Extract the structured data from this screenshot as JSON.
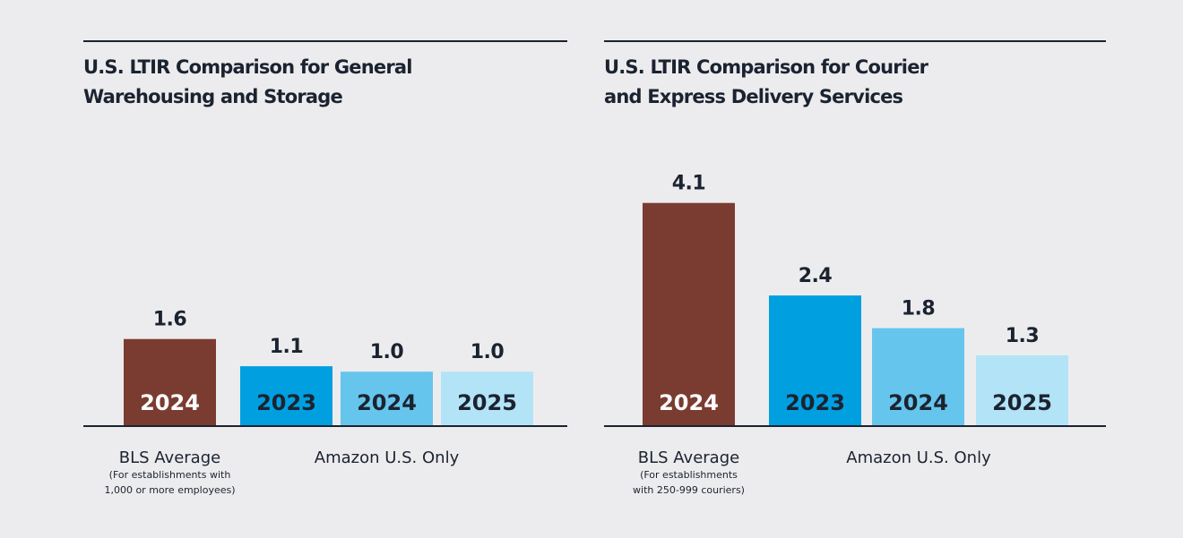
{
  "chart_data": [
    {
      "type": "bar",
      "title": [
        "U.S. LTIR Comparison for General",
        "Warehousing and Storage"
      ],
      "categories": [
        "2024",
        "2023",
        "2024",
        "2025"
      ],
      "values": [
        1.6,
        1.1,
        1,
        1
      ],
      "value_labels": [
        "1.6",
        "1.1",
        "1.0",
        "1.0"
      ],
      "colors": [
        "#7a3c31",
        "#009fe0",
        "#66c5ec",
        "#b3e3f6"
      ],
      "group_labels": [
        "BLS Average",
        "Amazon U.S. Only"
      ],
      "note": [
        "(For establishments with",
        "1,000 or more employees)"
      ]
    },
    {
      "type": "bar",
      "title": [
        "U.S. LTIR Comparison for Courier",
        "and Express Delivery Services"
      ],
      "categories": [
        "2024",
        "2023",
        "2024",
        "2025"
      ],
      "values": [
        4.1,
        2.4,
        1.8,
        1.3
      ],
      "colors": [
        "#7a3c31",
        "#009fe0",
        "#66c5ec",
        "#b3e3f6"
      ],
      "group_labels": [
        "BLS Average",
        "Amazon U.S. Only"
      ],
      "note": [
        "(For establishments",
        "with 250-999 couriers)"
      ]
    }
  ]
}
